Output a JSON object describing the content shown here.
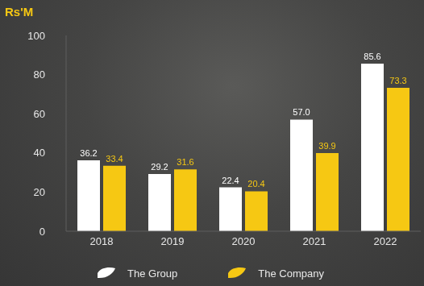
{
  "chart_data": {
    "type": "bar",
    "ylabel": "Rs'M",
    "categories": [
      "2018",
      "2019",
      "2020",
      "2021",
      "2022"
    ],
    "series": [
      {
        "name": "The Group",
        "color": "#ffffff",
        "values": [
          36.2,
          29.2,
          22.4,
          57.0,
          85.6
        ],
        "value_labels": [
          "36.2",
          "29.2",
          "22.4",
          "57.0",
          "85.6"
        ]
      },
      {
        "name": "The Company",
        "color": "#f6c813",
        "values": [
          33.4,
          31.6,
          20.4,
          39.9,
          73.3
        ],
        "value_labels": [
          "33.4",
          "31.6",
          "20.4",
          "39.9",
          "73.3"
        ]
      }
    ],
    "ylim": [
      0,
      100
    ],
    "yticks": [
      0,
      20,
      40,
      60,
      80,
      100
    ],
    "grid": false,
    "legend": "bottom",
    "data_labels": true
  }
}
